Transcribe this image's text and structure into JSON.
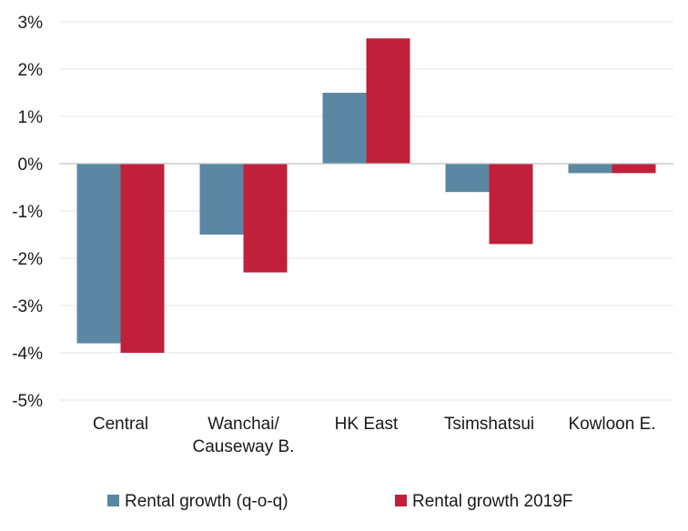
{
  "chart_data": {
    "type": "bar",
    "categories": [
      [
        "Central"
      ],
      [
        "Wanchai/",
        "Causeway B."
      ],
      [
        "HK East"
      ],
      [
        "Tsimshatsui"
      ],
      [
        "Kowloon E."
      ]
    ],
    "series": [
      {
        "name": "Rental growth (q-o-q)",
        "color": "#5b87a3",
        "values": [
          -3.8,
          -1.5,
          1.5,
          -0.6,
          -0.2
        ]
      },
      {
        "name": "Rental growth 2019F",
        "color": "#c0203a",
        "values": [
          -4.0,
          -2.3,
          2.65,
          -1.7,
          -0.2
        ]
      }
    ],
    "ylim": [
      -5,
      3
    ],
    "yticks": [
      3,
      2,
      1,
      0,
      -1,
      -2,
      -3,
      -4,
      -5
    ],
    "ytick_labels": [
      "3%",
      "2%",
      "1%",
      "0%",
      "-1%",
      "-2%",
      "-3%",
      "-4%",
      "-5%"
    ],
    "grid": true,
    "legend_position": "bottom",
    "title": "",
    "xlabel": "",
    "ylabel": ""
  }
}
